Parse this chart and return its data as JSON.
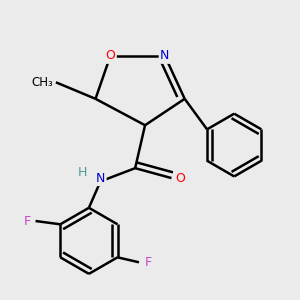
{
  "background_color": "#ebebeb",
  "atom_colors": {
    "O": "#ff0000",
    "N": "#0000cd",
    "F": "#cc44cc",
    "C": "#000000",
    "H": "#4a9a9a"
  },
  "bond_color": "#000000",
  "bond_width": 1.8,
  "figsize": [
    3.0,
    3.0
  ],
  "dpi": 100
}
